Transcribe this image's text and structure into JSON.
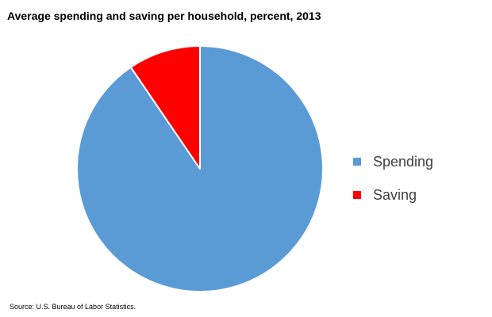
{
  "chart_data": {
    "type": "pie",
    "title": "Average spending and saving per household, percent, 2013",
    "source": "Source: U.S. Bureau of Labor Statistics.",
    "categories": [
      "Spending",
      "Saving"
    ],
    "values": [
      90.5,
      9.5
    ],
    "colors": [
      "#5b9bd5",
      "#ff0000"
    ],
    "start": "12 o'clock",
    "direction": "clockwise",
    "legend_position": "right"
  }
}
